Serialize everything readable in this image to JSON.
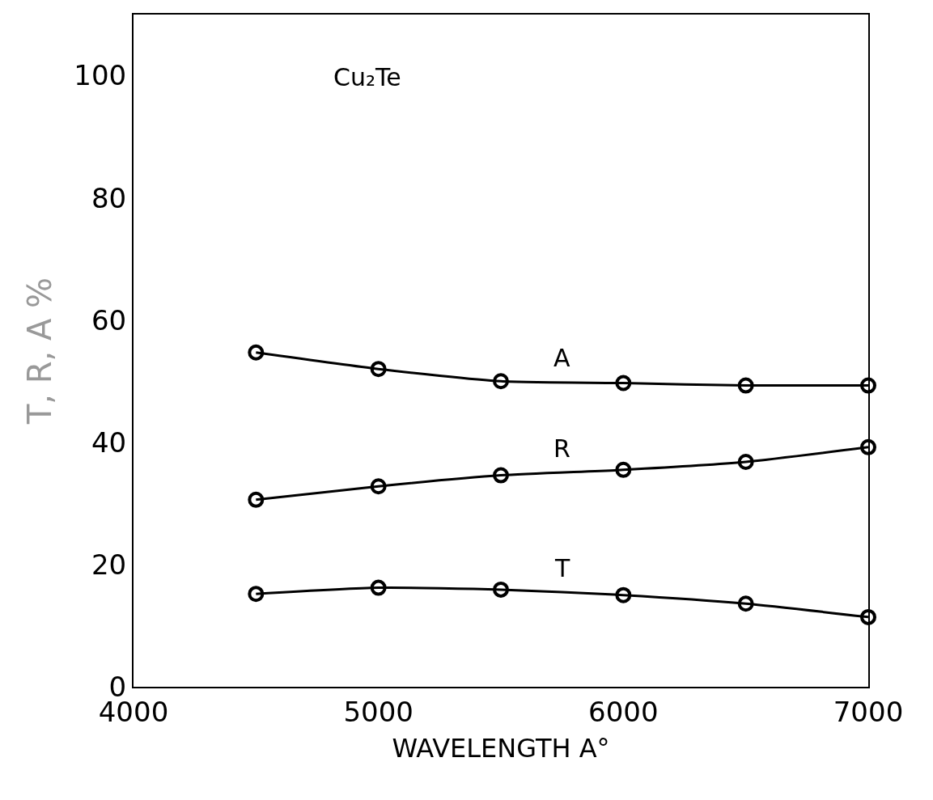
{
  "chart_data": {
    "type": "line",
    "xlabel": "WAVELENGTH A°",
    "ylabel": "T, R, A %",
    "x": [
      4500,
      5000,
      5500,
      6000,
      6500,
      7000
    ],
    "series": [
      {
        "name": "A",
        "color": "#000000",
        "values": [
          54.7,
          52.0,
          50.0,
          49.7,
          49.3,
          49.3
        ]
      },
      {
        "name": "R",
        "color": "#000000",
        "values": [
          30.6,
          32.8,
          34.6,
          35.5,
          36.8,
          39.2
        ]
      },
      {
        "name": "T",
        "color": "#000000",
        "values": [
          15.2,
          16.2,
          15.9,
          15.0,
          13.6,
          11.4
        ]
      }
    ],
    "annotations": [
      "Cu₂Te"
    ],
    "xlim": [
      4000,
      7000
    ],
    "xticks": [
      4000,
      5000,
      6000,
      7000
    ],
    "ylim": [
      0,
      110
    ],
    "yticks": [
      0,
      20,
      40,
      60,
      80,
      100
    ],
    "legend": false,
    "marker": "circle",
    "line_style": "solid"
  }
}
